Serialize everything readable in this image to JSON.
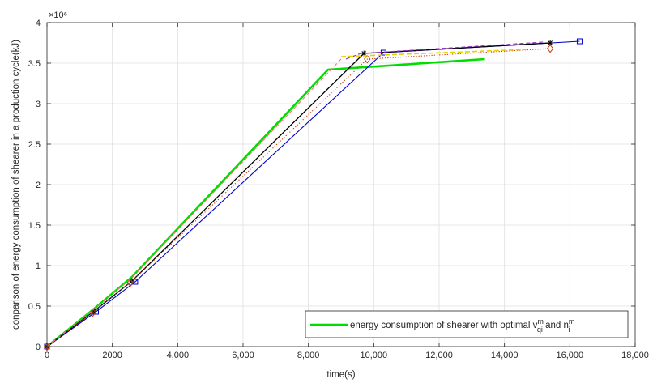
{
  "chart_data": {
    "type": "line",
    "title": "",
    "xlabel": "time(s)",
    "ylabel": "conparison of energy consumption of shearer in a production cycle(kJ)",
    "xlim": [
      0,
      18000
    ],
    "ylim": [
      0,
      4
    ],
    "x_ticks": [
      0,
      2000,
      4000,
      6000,
      8000,
      10000,
      12000,
      14000,
      16000,
      18000
    ],
    "x_tick_labels": [
      "0",
      "2000",
      "4,000",
      "6,000",
      "8,000",
      "10,000",
      "12,000",
      "14,000",
      "16,000",
      "18,000"
    ],
    "y_ticks": [
      0,
      0.5,
      1,
      1.5,
      2,
      2.5,
      3,
      3.5,
      4
    ],
    "y_tick_labels": [
      "0",
      "0.5",
      "1",
      "1.5",
      "2",
      "2.5",
      "3",
      "3.5",
      "4"
    ],
    "y_exponent": "×10⁶",
    "grid": true,
    "legend_position": "bottom-right",
    "legend": {
      "text_before": "energy consumption of shearer with optimal v",
      "v_sup": "m",
      "v_sub": "qi",
      "text_mid": " and n",
      "n_sup": "m",
      "n_sub": "i"
    },
    "series": [
      {
        "color": "#00dd00",
        "dash": "",
        "marker": "none",
        "width": 2.6,
        "x": [
          0,
          1450,
          2600,
          8600,
          13400
        ],
        "y": [
          0,
          0.47,
          0.86,
          3.42,
          3.55
        ]
      },
      {
        "color": "#0000cc",
        "dash": "",
        "marker": "square",
        "width": 1.1,
        "x": [
          0,
          1500,
          2700,
          10300,
          16300
        ],
        "y": [
          0,
          0.43,
          0.8,
          3.63,
          3.77
        ]
      },
      {
        "color": "#000000",
        "dash": "",
        "marker": "star",
        "width": 1.3,
        "x": [
          0,
          1450,
          2600,
          9700,
          15400
        ],
        "y": [
          0,
          0.44,
          0.81,
          3.62,
          3.75
        ]
      },
      {
        "color": "#cc3300",
        "dash": "1.2,2",
        "marker": "diamond",
        "width": 1.1,
        "x": [
          0,
          1400,
          2550,
          9800,
          15400
        ],
        "y": [
          0,
          0.42,
          0.79,
          3.55,
          3.68
        ]
      },
      {
        "color": "#ee7777",
        "dash": "5,3",
        "marker": "none",
        "width": 1.1,
        "x": [
          0,
          1400,
          2550,
          9000
        ],
        "y": [
          0,
          0.45,
          0.83,
          3.55
        ]
      },
      {
        "color": "#9933cc",
        "dash": "5,3",
        "marker": "none",
        "width": 1.2,
        "x": [
          9150,
          9600,
          15200
        ],
        "y": [
          3.55,
          3.62,
          3.76
        ]
      },
      {
        "color": "#e6d200",
        "dash": "6,3",
        "marker": "none",
        "width": 1.6,
        "x": [
          9000,
          14700
        ],
        "y": [
          3.58,
          3.67
        ]
      }
    ]
  }
}
